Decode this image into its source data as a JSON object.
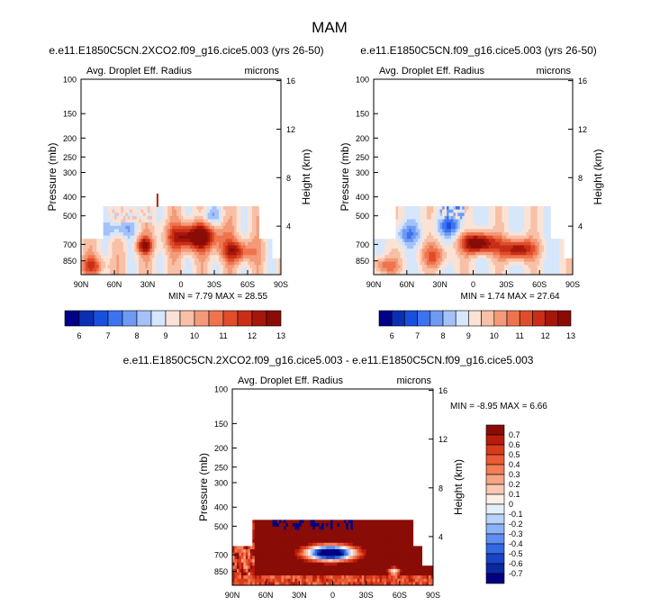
{
  "title": "MAM",
  "chart_data": [
    {
      "type": "heatmap",
      "title": "e.e11.E1850C5CN.2XCO2.f09_g16.cice5.003 (yrs 26-50)",
      "variable": "Avg. Droplet Eff. Radius",
      "units": "microns",
      "ylabel": "Pressure (mb)",
      "y2label": "Height (km)",
      "xticks": [
        "90N",
        "60N",
        "30N",
        "0",
        "30S",
        "60S",
        "90S"
      ],
      "xtick_values": [
        90,
        60,
        30,
        0,
        -30,
        -60,
        -90
      ],
      "yticks": [
        100,
        150,
        200,
        250,
        300,
        400,
        500,
        700,
        850
      ],
      "y2ticks": [
        16,
        12,
        8,
        4
      ],
      "ylim": [
        100,
        1000
      ],
      "min_label": "MIN =",
      "min": "7.79",
      "max_label": "MAX =",
      "max": "28.55",
      "colorbar_labels": [
        "6",
        "7",
        "8",
        "9",
        "10",
        "11",
        "12",
        "13"
      ],
      "colorbar_colors": [
        "#000088",
        "#0a2fb4",
        "#1850dc",
        "#3d72f0",
        "#6e9af4",
        "#a4c2f8",
        "#d6e6fb",
        "#fbe2d6",
        "#f8c0a6",
        "#f49a78",
        "#ef744e",
        "#e04d2a",
        "#c82f16",
        "#a6170a",
        "#8a0c06"
      ]
    },
    {
      "type": "heatmap",
      "title": "e.e11.E1850C5CN.f09_g16.cice5.003 (yrs 26-50)",
      "variable": "Avg. Droplet Eff. Radius",
      "units": "microns",
      "ylabel": "Pressure (mb)",
      "y2label": "Height (km)",
      "xticks": [
        "90N",
        "60N",
        "30N",
        "0",
        "30S",
        "60S",
        "90S"
      ],
      "xtick_values": [
        90,
        60,
        30,
        0,
        -30,
        -60,
        -90
      ],
      "yticks": [
        100,
        150,
        200,
        250,
        300,
        400,
        500,
        700,
        850
      ],
      "y2ticks": [
        16,
        12,
        8,
        4
      ],
      "ylim": [
        100,
        1000
      ],
      "min_label": "MIN =",
      "min": "1.74",
      "max_label": "MAX =",
      "max": "27.64",
      "colorbar_labels": [
        "6",
        "7",
        "8",
        "9",
        "10",
        "11",
        "12",
        "13"
      ],
      "colorbar_colors": [
        "#000088",
        "#0a2fb4",
        "#1850dc",
        "#3d72f0",
        "#6e9af4",
        "#a4c2f8",
        "#d6e6fb",
        "#fbe2d6",
        "#f8c0a6",
        "#f49a78",
        "#ef744e",
        "#e04d2a",
        "#c82f16",
        "#a6170a",
        "#8a0c06"
      ]
    },
    {
      "type": "heatmap",
      "title": "e.e11.E1850C5CN.2XCO2.f09_g16.cice5.003 - e.e11.E1850C5CN.f09_g16.cice5.003",
      "variable": "Avg. Droplet Eff. Radius",
      "units": "microns",
      "ylabel": "Pressure (mb)",
      "y2label": "Height (km)",
      "xticks": [
        "90N",
        "60N",
        "30N",
        "0",
        "30S",
        "60S",
        "90S"
      ],
      "xtick_values": [
        90,
        60,
        30,
        0,
        -30,
        -60,
        -90
      ],
      "yticks": [
        100,
        150,
        200,
        250,
        300,
        400,
        500,
        700,
        850
      ],
      "y2ticks": [
        16,
        12,
        8,
        4
      ],
      "ylim": [
        100,
        1000
      ],
      "min_label": "MIN =",
      "min": "-8.95",
      "max_label": "MAX =",
      "max": "6.66",
      "colorbar_labels": [
        "0.7",
        "0.6",
        "0.5",
        "0.4",
        "0.3",
        "0.2",
        "0.1",
        "0",
        "-0.1",
        "-0.2",
        "-0.3",
        "-0.4",
        "-0.5",
        "-0.6",
        "-0.7"
      ],
      "colorbar_colors": [
        "#8a0c06",
        "#b81c0c",
        "#d83a1c",
        "#ea5a34",
        "#f27e58",
        "#f6a486",
        "#f9c8b2",
        "#fdeee6",
        "#e4effc",
        "#b8d2fa",
        "#8cb2f6",
        "#5e8ef0",
        "#3468e4",
        "#1a44c6",
        "#0a28a0",
        "#000080"
      ]
    }
  ]
}
